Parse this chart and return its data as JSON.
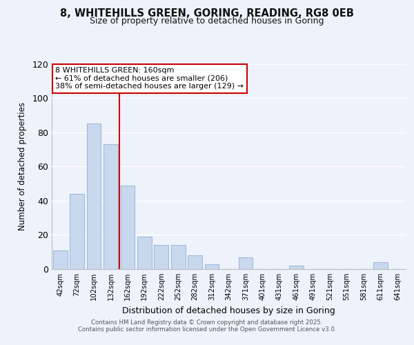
{
  "title": "8, WHITEHILLS GREEN, GORING, READING, RG8 0EB",
  "subtitle": "Size of property relative to detached houses in Goring",
  "xlabel": "Distribution of detached houses by size in Goring",
  "ylabel": "Number of detached properties",
  "bar_color": "#c8d8ee",
  "bar_edge_color": "#a0bcd8",
  "background_color": "#eef2fb",
  "grid_color": "#ffffff",
  "vline_color": "#cc0000",
  "annotation_text": "8 WHITEHILLS GREEN: 160sqm\n← 61% of detached houses are smaller (206)\n38% of semi-detached houses are larger (129) →",
  "annotation_box_color": "#ffffff",
  "annotation_box_edge": "#cc0000",
  "categories": [
    "42sqm",
    "72sqm",
    "102sqm",
    "132sqm",
    "162sqm",
    "192sqm",
    "222sqm",
    "252sqm",
    "282sqm",
    "312sqm",
    "342sqm",
    "371sqm",
    "401sqm",
    "431sqm",
    "461sqm",
    "491sqm",
    "521sqm",
    "551sqm",
    "581sqm",
    "611sqm",
    "641sqm"
  ],
  "values": [
    11,
    44,
    85,
    73,
    49,
    19,
    14,
    14,
    8,
    3,
    0,
    7,
    0,
    0,
    2,
    0,
    0,
    0,
    0,
    4,
    0
  ],
  "ylim": [
    0,
    120
  ],
  "yticks": [
    0,
    20,
    40,
    60,
    80,
    100,
    120
  ],
  "footer_line1": "Contains HM Land Registry data © Crown copyright and database right 2025.",
  "footer_line2": "Contains public sector information licensed under the Open Government Licence v3.0."
}
